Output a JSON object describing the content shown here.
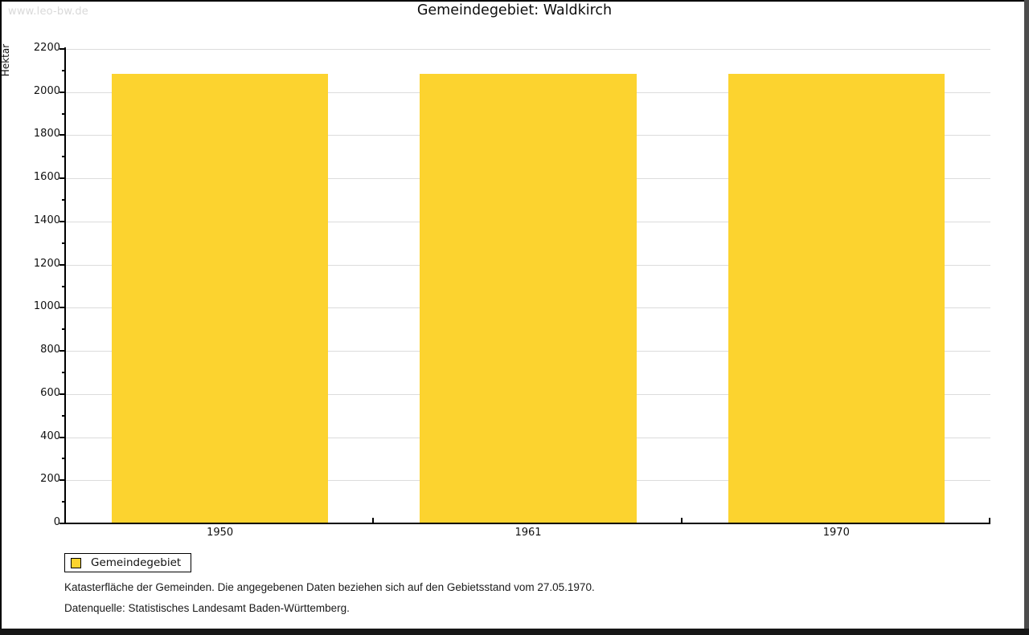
{
  "watermark": "www.leo-bw.de",
  "title": "Gemeindegebiet: Waldkirch",
  "chart_data": {
    "type": "bar",
    "title": "Gemeindegebiet: Waldkirch",
    "categories": [
      "1950",
      "1961",
      "1970"
    ],
    "series": [
      {
        "name": "Gemeindegebiet",
        "values": [
          2083,
          2083,
          2083
        ]
      }
    ],
    "xlabel": "",
    "ylabel": "Hektar",
    "ylim": [
      0,
      2200
    ],
    "yticks": [
      0,
      200,
      400,
      600,
      800,
      1000,
      1200,
      1400,
      1600,
      1800,
      2000,
      2200
    ],
    "yminor_step": 100,
    "grid": true,
    "legend_position": "bottom-left",
    "bar_color": "#FCD32F",
    "grid_color": "#DCDCDC"
  },
  "legend": {
    "items": [
      {
        "label": "Gemeindegebiet",
        "color": "#FCD32F"
      }
    ]
  },
  "footnotes": [
    "Katasterfläche der Gemeinden. Die angegebenen Daten beziehen sich auf den Gebietsstand vom 27.05.1970.",
    "Datenquelle: Statistisches Landesamt Baden-Württemberg."
  ]
}
